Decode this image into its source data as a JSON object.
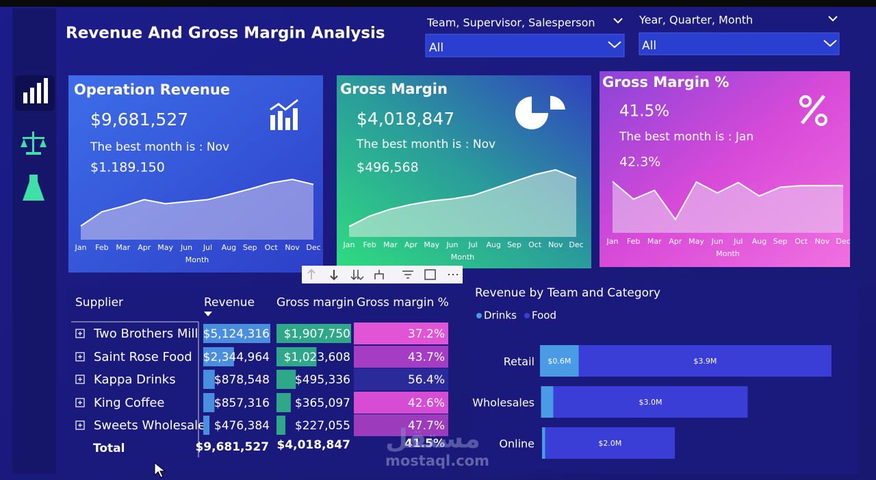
{
  "header": {
    "title": "Revenue And Gross Margin Analysis"
  },
  "filters": [
    {
      "label": "Team, Supervisor, Salesperson",
      "value": "All"
    },
    {
      "label": "Year, Quarter, Month",
      "value": "All"
    }
  ],
  "chart_data": [
    {
      "type": "area",
      "title": "Operation Revenue",
      "kpi": "$9,681,527",
      "note": "The best month is : Nov",
      "best": "$1.189.150",
      "categories": [
        "Jan",
        "Feb",
        "Mar",
        "Apr",
        "May",
        "Jun",
        "Jul",
        "Aug",
        "Sep",
        "Oct",
        "Nov",
        "Dec"
      ],
      "values": [
        270000,
        550000,
        660000,
        790000,
        710000,
        750000,
        790000,
        890000,
        1000000,
        1120000,
        1189150,
        1090000
      ],
      "xlabel": "Month",
      "color": "#c4c0ec"
    },
    {
      "type": "area",
      "title": "Gross Margin",
      "kpi": "$4,018,847",
      "note": "The best month is : Nov",
      "best": "$496,568",
      "categories": [
        "Jan",
        "Feb",
        "Mar",
        "Apr",
        "May",
        "Jun",
        "Jul",
        "Aug",
        "Sep",
        "Oct",
        "Nov",
        "Dec"
      ],
      "values": [
        77000,
        154000,
        205000,
        240000,
        266000,
        282000,
        307000,
        358000,
        410000,
        461000,
        496568,
        435000
      ],
      "xlabel": "Month",
      "color": "#cfe8e0"
    },
    {
      "type": "area",
      "title": "Gross Margin %",
      "kpi": "41.5%",
      "note": "The best month is : Jan",
      "best": "42.3%",
      "categories": [
        "Jan",
        "Feb",
        "Mar",
        "Apr",
        "May",
        "Jun",
        "Jul",
        "Aug",
        "Sep",
        "Oct",
        "Nov",
        "Dec"
      ],
      "values": [
        42.3,
        38.9,
        40.6,
        35.0,
        42.2,
        40.1,
        42.1,
        39.5,
        41.2,
        41.5,
        41.5,
        41.5
      ],
      "xlabel": "Month",
      "color": "#e8c8f0"
    },
    {
      "type": "bar",
      "orientation": "horizontal",
      "stacked": true,
      "title": "Revenue by Team and Category",
      "categories": [
        "Retail",
        "Wholesales",
        "Online"
      ],
      "series": [
        {
          "name": "Drinks",
          "color": "#4a9be6",
          "values": [
            600000,
            190000,
            50000
          ],
          "value_labels": [
            "$0.6M",
            null,
            null
          ]
        },
        {
          "name": "Food",
          "color": "#3a3ed6",
          "values": [
            3900000,
            3000000,
            2000000
          ],
          "value_labels": [
            "$3.9M",
            "$3.0M",
            "$2.0M"
          ]
        }
      ]
    }
  ],
  "table": {
    "headers": [
      "Supplier",
      "Revenue",
      "Gross margin",
      "Gross margin %"
    ],
    "rows": [
      "Two Brothers Mill",
      "Saint Rose Food",
      "Kappa Drinks",
      "King Coffee",
      "Sweets Wholesale"
    ],
    "revenue": {
      "values": [
        5124316,
        2344964,
        878548,
        857316,
        476384
      ],
      "value_labels": [
        "$5,124,316",
        "$2,344,964",
        "$878,548",
        "$857,316",
        "$476,384"
      ],
      "color": "#4a8ee0"
    },
    "gross_margin": {
      "values": [
        1907750,
        1023608,
        495336,
        365097,
        227055
      ],
      "value_labels": [
        "$1,907,750",
        "$1,023,608",
        "$495,336",
        "$365,097",
        "$227,055"
      ],
      "color": "#2fa88a"
    },
    "gross_margin_pct": {
      "values": [
        37.2,
        43.7,
        56.4,
        42.6,
        47.7
      ],
      "value_labels": [
        "37.2%",
        "43.7%",
        "56.4%",
        "42.6%",
        "47.7%"
      ],
      "colors": [
        "#e254d6",
        "#a43cc4",
        "#2a2a9a",
        "#d64cd4",
        "#9c3cbc"
      ]
    },
    "total": {
      "label": "Total",
      "revenue": "$9,681,527",
      "gross_margin": "$4,018,847",
      "gross_margin_pct": "41.5%"
    }
  },
  "watermark": {
    "arabic": "مستقل",
    "latin": "mostaql.com"
  }
}
